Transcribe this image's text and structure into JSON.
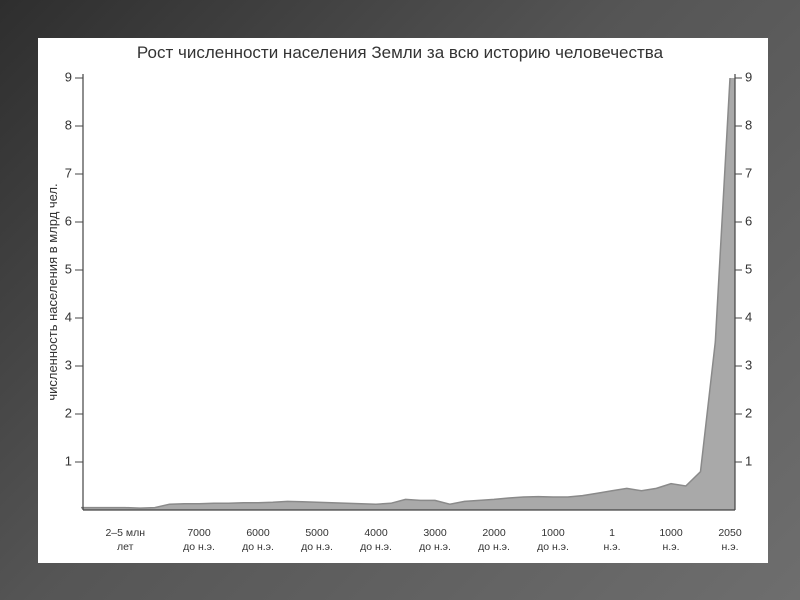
{
  "chart_data": {
    "type": "area",
    "title": "Рост численности населения Земли за всю историю человечества",
    "y_label": "численность населения в млрд чел.",
    "categories": [
      null,
      null,
      null,
      [
        "2–5 млн",
        "лет"
      ],
      null,
      null,
      null,
      null,
      [
        "7000",
        "до н.э."
      ],
      null,
      null,
      null,
      [
        "6000",
        "до н.э."
      ],
      null,
      null,
      null,
      [
        "5000",
        "до н.э."
      ],
      null,
      null,
      null,
      [
        "4000",
        "до н.э."
      ],
      null,
      null,
      null,
      [
        "3000",
        "до н.э."
      ],
      null,
      null,
      null,
      [
        "2000",
        "до н.э."
      ],
      null,
      null,
      null,
      [
        "1000",
        "до н.э."
      ],
      null,
      null,
      null,
      [
        "1",
        "н.э."
      ],
      null,
      null,
      null,
      [
        "1000",
        "н.э."
      ],
      null,
      null,
      null,
      [
        "2050",
        "н.э."
      ]
    ],
    "values": [
      0.05,
      0.05,
      0.05,
      0.05,
      0.04,
      0.05,
      0.12,
      0.13,
      0.13,
      0.14,
      0.14,
      0.15,
      0.15,
      0.16,
      0.18,
      0.17,
      0.16,
      0.15,
      0.14,
      0.13,
      0.12,
      0.14,
      0.22,
      0.2,
      0.2,
      0.12,
      0.18,
      0.2,
      0.22,
      0.25,
      0.27,
      0.28,
      0.27,
      0.27,
      0.3,
      0.35,
      0.4,
      0.45,
      0.4,
      0.45,
      0.55,
      0.5,
      0.8,
      3.5,
      9
    ],
    "color": "#a9a9a9",
    "ylim": [
      0,
      9
    ],
    "yticks": [
      1,
      2,
      3,
      4,
      5,
      6,
      7,
      8,
      9
    ]
  }
}
